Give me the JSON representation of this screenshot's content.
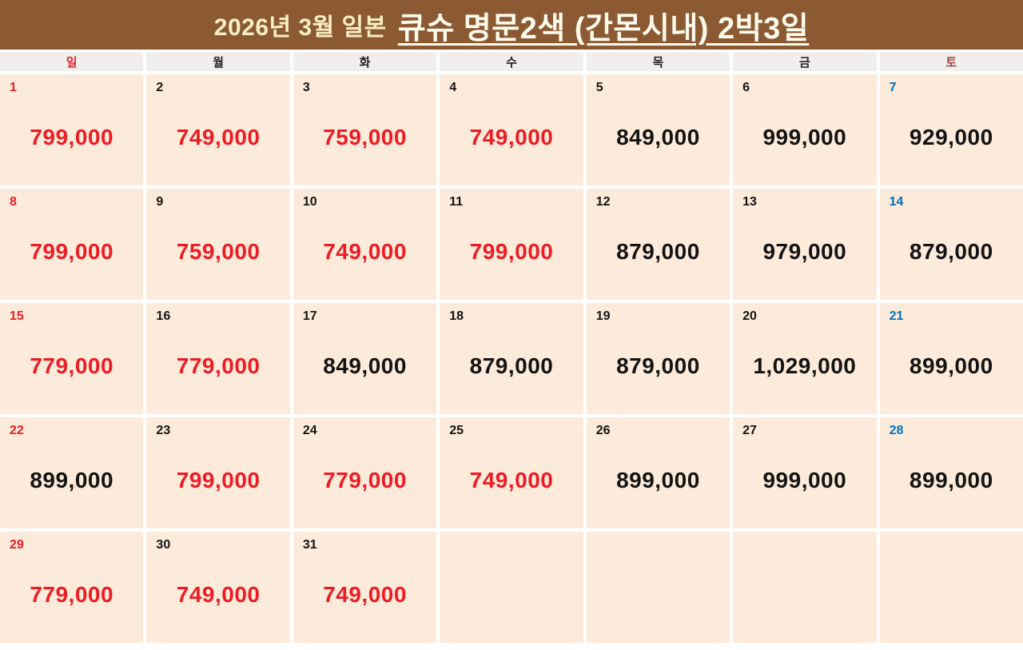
{
  "title": {
    "prefix": "2026년 3월 일본",
    "main": "큐슈 명문2색 (간몬시내) 2박3일"
  },
  "colors": {
    "title_bg": "#8B5A33",
    "title_prefix_text": "#F9EEC4",
    "title_main_text": "#FDFAEC",
    "header_cell_bg": "#F1EFEE",
    "cell_bg": "#FCEADA",
    "red": "#ED1C24",
    "blue": "#0070C0",
    "black": "#141414",
    "sun": "#ED1C24",
    "weekday": "#222222",
    "sat": "#9C4444"
  },
  "weekdays": [
    {
      "label": "일",
      "type": "sun"
    },
    {
      "label": "월",
      "type": "weekday"
    },
    {
      "label": "화",
      "type": "weekday"
    },
    {
      "label": "수",
      "type": "weekday"
    },
    {
      "label": "목",
      "type": "weekday"
    },
    {
      "label": "금",
      "type": "weekday"
    },
    {
      "label": "토",
      "type": "sat"
    }
  ],
  "calendar": {
    "weeks": [
      [
        {
          "day": "1",
          "day_color": "red",
          "price": "799,000",
          "price_color": "red"
        },
        {
          "day": "2",
          "day_color": "black",
          "price": "749,000",
          "price_color": "red"
        },
        {
          "day": "3",
          "day_color": "black",
          "price": "759,000",
          "price_color": "red"
        },
        {
          "day": "4",
          "day_color": "black",
          "price": "749,000",
          "price_color": "red"
        },
        {
          "day": "5",
          "day_color": "black",
          "price": "849,000",
          "price_color": "black"
        },
        {
          "day": "6",
          "day_color": "black",
          "price": "999,000",
          "price_color": "black"
        },
        {
          "day": "7",
          "day_color": "blue",
          "price": "929,000",
          "price_color": "black"
        }
      ],
      [
        {
          "day": "8",
          "day_color": "red",
          "price": "799,000",
          "price_color": "red"
        },
        {
          "day": "9",
          "day_color": "black",
          "price": "759,000",
          "price_color": "red"
        },
        {
          "day": "10",
          "day_color": "black",
          "price": "749,000",
          "price_color": "red"
        },
        {
          "day": "11",
          "day_color": "black",
          "price": "799,000",
          "price_color": "red"
        },
        {
          "day": "12",
          "day_color": "black",
          "price": "879,000",
          "price_color": "black"
        },
        {
          "day": "13",
          "day_color": "black",
          "price": "979,000",
          "price_color": "black"
        },
        {
          "day": "14",
          "day_color": "blue",
          "price": "879,000",
          "price_color": "black"
        }
      ],
      [
        {
          "day": "15",
          "day_color": "red",
          "price": "779,000",
          "price_color": "red"
        },
        {
          "day": "16",
          "day_color": "black",
          "price": "779,000",
          "price_color": "red"
        },
        {
          "day": "17",
          "day_color": "black",
          "price": "849,000",
          "price_color": "black"
        },
        {
          "day": "18",
          "day_color": "black",
          "price": "879,000",
          "price_color": "black"
        },
        {
          "day": "19",
          "day_color": "black",
          "price": "879,000",
          "price_color": "black"
        },
        {
          "day": "20",
          "day_color": "black",
          "price": "1,029,000",
          "price_color": "black"
        },
        {
          "day": "21",
          "day_color": "blue",
          "price": "899,000",
          "price_color": "black"
        }
      ],
      [
        {
          "day": "22",
          "day_color": "red",
          "price": "899,000",
          "price_color": "black"
        },
        {
          "day": "23",
          "day_color": "black",
          "price": "799,000",
          "price_color": "red"
        },
        {
          "day": "24",
          "day_color": "black",
          "price": "779,000",
          "price_color": "red"
        },
        {
          "day": "25",
          "day_color": "black",
          "price": "749,000",
          "price_color": "red"
        },
        {
          "day": "26",
          "day_color": "black",
          "price": "899,000",
          "price_color": "black"
        },
        {
          "day": "27",
          "day_color": "black",
          "price": "999,000",
          "price_color": "black"
        },
        {
          "day": "28",
          "day_color": "blue",
          "price": "899,000",
          "price_color": "black"
        }
      ],
      [
        {
          "day": "29",
          "day_color": "red",
          "price": "779,000",
          "price_color": "red"
        },
        {
          "day": "30",
          "day_color": "black",
          "price": "749,000",
          "price_color": "red"
        },
        {
          "day": "31",
          "day_color": "black",
          "price": "749,000",
          "price_color": "red"
        },
        {
          "day": "",
          "day_color": "",
          "price": "",
          "price_color": ""
        },
        {
          "day": "",
          "day_color": "",
          "price": "",
          "price_color": ""
        },
        {
          "day": "",
          "day_color": "",
          "price": "",
          "price_color": ""
        },
        {
          "day": "",
          "day_color": "",
          "price": "",
          "price_color": ""
        }
      ]
    ]
  }
}
